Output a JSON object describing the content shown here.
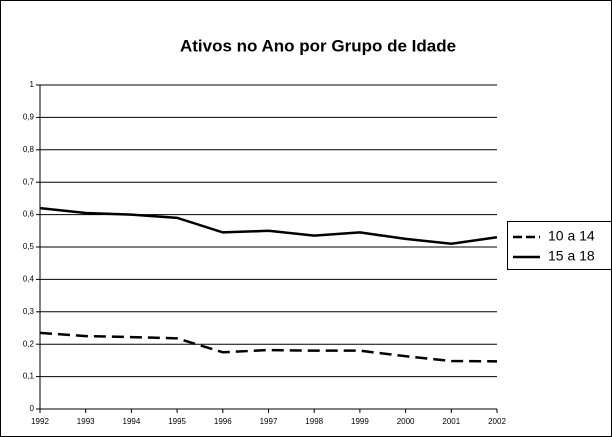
{
  "chart_data": {
    "type": "line",
    "title": "Ativos no Ano por Grupo de Idade",
    "x": [
      1992,
      1993,
      1994,
      1995,
      1996,
      1997,
      1998,
      1999,
      2000,
      2001,
      2002
    ],
    "xlim": [
      1992,
      2002
    ],
    "xticks": [
      1992,
      1993,
      1994,
      1995,
      1996,
      1997,
      1998,
      1999,
      2000,
      2001,
      2002
    ],
    "ylim": [
      0,
      1
    ],
    "yticks": [
      0,
      {
        "value": 0.1,
        "label": "0,1"
      },
      {
        "value": 0.2,
        "label": "0,2"
      },
      {
        "value": 0.3,
        "label": "0,3"
      },
      {
        "value": 0.4,
        "label": "0,4"
      },
      {
        "value": 0.5,
        "label": "0,5"
      },
      {
        "value": 0.6,
        "label": "0,6"
      },
      {
        "value": 0.7,
        "label": "0,7"
      },
      {
        "value": 0.8,
        "label": "0,8"
      },
      {
        "value": 0.9,
        "label": "0,9"
      },
      1
    ],
    "grid": true,
    "legend": "right",
    "series": [
      {
        "name": "10 a 14",
        "color": "#000000",
        "dashed": true,
        "values": [
          0.235,
          0.225,
          0.222,
          0.218,
          0.175,
          0.182,
          0.18,
          0.18,
          0.163,
          0.148,
          0.147
        ]
      },
      {
        "name": "15 a 18",
        "color": "#000000",
        "dashed": false,
        "values": [
          0.62,
          0.605,
          0.6,
          0.59,
          0.545,
          0.55,
          0.535,
          0.545,
          0.525,
          0.51,
          0.53
        ]
      }
    ]
  }
}
